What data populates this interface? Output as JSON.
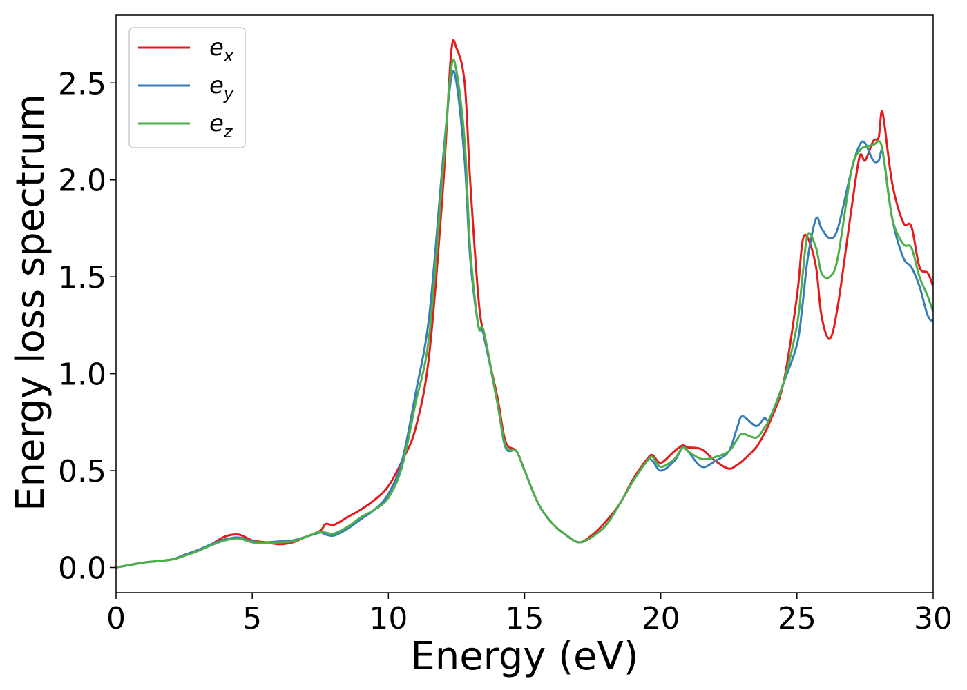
{
  "chart_data": {
    "type": "line",
    "xlabel": "Energy (eV)",
    "ylabel": "Energy loss spectrum",
    "xlim": [
      0,
      30
    ],
    "ylim": [
      -0.13,
      2.85
    ],
    "xticks": [
      0,
      5,
      10,
      15,
      20,
      25,
      30
    ],
    "yticks": [
      0.0,
      0.5,
      1.0,
      1.5,
      2.0,
      2.5
    ],
    "xtick_labels": [
      "0",
      "5",
      "10",
      "15",
      "20",
      "25",
      "30"
    ],
    "ytick_labels": [
      "0.0",
      "0.5",
      "1.0",
      "1.5",
      "2.0",
      "2.5"
    ],
    "grid": false,
    "legend_position": "top-left",
    "series": [
      {
        "name": "e_x",
        "label_base": "e",
        "label_sub": "x",
        "color": "#e41a1c",
        "x": [
          0,
          1,
          2,
          2.5,
          3,
          3.5,
          4,
          4.5,
          5,
          5.5,
          6,
          6.5,
          7,
          7.5,
          7.7,
          8,
          8.5,
          9,
          9.5,
          10,
          10.5,
          11,
          11.5,
          12,
          12.3,
          12.5,
          12.8,
          13,
          13.3,
          13.5,
          14,
          14.3,
          14.7,
          15,
          15.5,
          16,
          16.5,
          17,
          17.5,
          18,
          18.5,
          19,
          19.5,
          19.7,
          20,
          20.5,
          20.8,
          21,
          21.5,
          22,
          22.5,
          22.8,
          23,
          23.5,
          23.8,
          24,
          24.5,
          25,
          25.2,
          25.4,
          25.7,
          25.9,
          26.2,
          26.5,
          27,
          27.3,
          27.5,
          27.8,
          28,
          28.1,
          28.2,
          28.5,
          28.9,
          29.2,
          29.5,
          29.8,
          30
        ],
        "y": [
          0.0,
          0.025,
          0.04,
          0.06,
          0.085,
          0.12,
          0.16,
          0.17,
          0.14,
          0.13,
          0.12,
          0.13,
          0.16,
          0.19,
          0.225,
          0.22,
          0.26,
          0.3,
          0.35,
          0.42,
          0.55,
          0.72,
          1.1,
          1.95,
          2.65,
          2.68,
          2.5,
          2.0,
          1.4,
          1.2,
          0.88,
          0.65,
          0.6,
          0.5,
          0.33,
          0.23,
          0.17,
          0.13,
          0.17,
          0.24,
          0.33,
          0.46,
          0.56,
          0.58,
          0.54,
          0.6,
          0.63,
          0.62,
          0.61,
          0.55,
          0.51,
          0.53,
          0.55,
          0.62,
          0.69,
          0.75,
          0.95,
          1.4,
          1.68,
          1.7,
          1.55,
          1.3,
          1.18,
          1.35,
          1.85,
          2.12,
          2.1,
          2.2,
          2.22,
          2.35,
          2.3,
          1.98,
          1.78,
          1.76,
          1.55,
          1.52,
          1.45
        ]
      },
      {
        "name": "e_y",
        "label_base": "e",
        "label_sub": "y",
        "color": "#377eb8",
        "x": [
          0,
          1,
          2,
          2.5,
          3,
          3.5,
          4,
          4.5,
          5,
          5.5,
          6,
          6.5,
          7,
          7.5,
          7.7,
          8,
          8.5,
          9,
          9.5,
          10,
          10.5,
          11,
          11.5,
          12,
          12.3,
          12.5,
          12.8,
          13,
          13.3,
          13.5,
          14,
          14.3,
          14.7,
          15,
          15.5,
          16,
          16.5,
          17,
          17.5,
          18,
          18.5,
          19,
          19.5,
          19.7,
          20,
          20.5,
          20.8,
          21,
          21.5,
          22,
          22.5,
          22.8,
          23,
          23.5,
          23.8,
          24,
          24.5,
          25,
          25.2,
          25.4,
          25.7,
          25.9,
          26.2,
          26.5,
          27,
          27.3,
          27.5,
          27.8,
          28,
          28.1,
          28.2,
          28.5,
          28.9,
          29.2,
          29.5,
          29.8,
          30
        ],
        "y": [
          0.0,
          0.025,
          0.04,
          0.065,
          0.09,
          0.12,
          0.145,
          0.155,
          0.135,
          0.13,
          0.135,
          0.14,
          0.16,
          0.18,
          0.17,
          0.165,
          0.2,
          0.25,
          0.3,
          0.38,
          0.55,
          0.9,
          1.3,
          2.1,
          2.52,
          2.5,
          2.1,
          1.6,
          1.25,
          1.2,
          0.85,
          0.62,
          0.6,
          0.5,
          0.33,
          0.23,
          0.17,
          0.13,
          0.16,
          0.22,
          0.33,
          0.45,
          0.55,
          0.55,
          0.5,
          0.55,
          0.62,
          0.6,
          0.52,
          0.55,
          0.6,
          0.72,
          0.78,
          0.73,
          0.77,
          0.77,
          0.95,
          1.15,
          1.35,
          1.6,
          1.8,
          1.75,
          1.7,
          1.75,
          2.05,
          2.18,
          2.19,
          2.1,
          2.1,
          2.15,
          2.1,
          1.8,
          1.6,
          1.55,
          1.45,
          1.3,
          1.27
        ]
      },
      {
        "name": "e_z",
        "label_base": "e",
        "label_sub": "z",
        "color": "#4daf4a",
        "x": [
          0,
          1,
          2,
          2.5,
          3,
          3.5,
          4,
          4.5,
          5,
          5.5,
          6,
          6.5,
          7,
          7.5,
          7.7,
          8,
          8.5,
          9,
          9.5,
          10,
          10.5,
          11,
          11.5,
          12,
          12.3,
          12.5,
          12.8,
          13,
          13.3,
          13.5,
          14,
          14.3,
          14.7,
          15,
          15.5,
          16,
          16.5,
          17,
          17.5,
          18,
          18.5,
          19,
          19.5,
          19.7,
          20,
          20.5,
          20.8,
          21,
          21.5,
          22,
          22.5,
          22.8,
          23,
          23.5,
          23.8,
          24,
          24.5,
          25,
          25.2,
          25.4,
          25.7,
          25.9,
          26.2,
          26.5,
          27,
          27.3,
          27.5,
          27.8,
          28,
          28.1,
          28.2,
          28.5,
          28.9,
          29.2,
          29.5,
          29.8,
          30
        ],
        "y": [
          0.0,
          0.025,
          0.04,
          0.06,
          0.085,
          0.115,
          0.14,
          0.15,
          0.13,
          0.125,
          0.13,
          0.135,
          0.16,
          0.185,
          0.18,
          0.175,
          0.21,
          0.26,
          0.3,
          0.36,
          0.52,
          0.85,
          1.2,
          2.05,
          2.57,
          2.56,
          2.2,
          1.65,
          1.25,
          1.22,
          0.85,
          0.63,
          0.6,
          0.5,
          0.33,
          0.23,
          0.17,
          0.13,
          0.16,
          0.22,
          0.33,
          0.45,
          0.55,
          0.57,
          0.52,
          0.56,
          0.62,
          0.6,
          0.56,
          0.57,
          0.6,
          0.66,
          0.69,
          0.67,
          0.72,
          0.77,
          0.95,
          1.25,
          1.5,
          1.72,
          1.65,
          1.52,
          1.5,
          1.6,
          2.05,
          2.15,
          2.17,
          2.18,
          2.2,
          2.18,
          2.1,
          1.8,
          1.67,
          1.65,
          1.5,
          1.4,
          1.32
        ]
      }
    ]
  }
}
